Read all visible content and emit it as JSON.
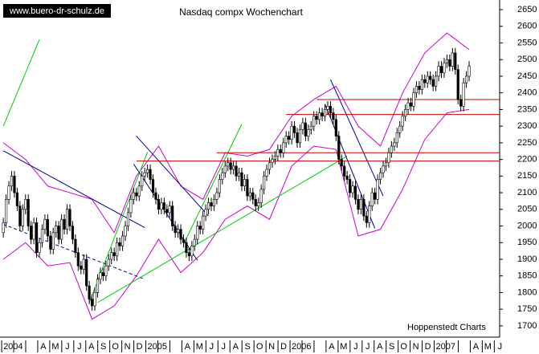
{
  "chart_data": {
    "type": "candlestick",
    "title": "Nasdaq compx Wochenchart",
    "watermark": "www.buero-dr-schulz.de",
    "source": "Hoppenstedt Charts",
    "up_color": "#ffffff",
    "down_color": "#000000",
    "ylim": [
      1666,
      2679
    ],
    "yticks": [
      1700,
      1750,
      1800,
      1850,
      1900,
      1950,
      2000,
      2050,
      2100,
      2150,
      2200,
      2250,
      2300,
      2350,
      2400,
      2450,
      2500,
      2550,
      2600,
      2650
    ],
    "xlim": [
      -1.2,
      179
    ],
    "months": [
      "2004",
      null,
      null,
      "A",
      "M",
      "J",
      "J",
      "A",
      "S",
      "O",
      "N",
      "D",
      "2005",
      null,
      null,
      "A",
      "M",
      "J",
      "J",
      "A",
      "S",
      "O",
      "N",
      "D",
      "2006",
      null,
      null,
      "A",
      "M",
      "J",
      "J",
      "A",
      "S",
      "O",
      "N",
      "D",
      "2007",
      null,
      null,
      "A",
      "M",
      "J"
    ],
    "candles": [
      [
        1980,
        2025,
        1965,
        2010
      ],
      [
        2010,
        2095,
        1995,
        2080
      ],
      [
        2080,
        2135,
        2065,
        2120
      ],
      [
        2120,
        2165,
        2105,
        2150
      ],
      [
        2150,
        2165,
        2085,
        2100
      ],
      [
        2100,
        2115,
        2045,
        2060
      ],
      [
        2060,
        2075,
        1985,
        2000
      ],
      [
        2000,
        2065,
        1985,
        2050
      ],
      [
        2050,
        2095,
        2035,
        2080
      ],
      [
        2080,
        2095,
        1985,
        2000
      ],
      [
        2000,
        2015,
        1945,
        1960
      ],
      [
        1960,
        2025,
        1945,
        2010
      ],
      [
        2010,
        2025,
        1905,
        1920
      ],
      [
        1920,
        1965,
        1905,
        1950
      ],
      [
        1950,
        2005,
        1935,
        1990
      ],
      [
        1990,
        2035,
        1975,
        2020
      ],
      [
        2020,
        2035,
        1955,
        1970
      ],
      [
        1970,
        1985,
        1915,
        1930
      ],
      [
        1930,
        1995,
        1915,
        1980
      ],
      [
        1980,
        2015,
        1965,
        2000
      ],
      [
        2000,
        2015,
        1945,
        1960
      ],
      [
        1960,
        2035,
        1945,
        2020
      ],
      [
        2020,
        2035,
        1975,
        1990
      ],
      [
        1990,
        2065,
        1975,
        2050
      ],
      [
        2050,
        2065,
        1985,
        2000
      ],
      [
        2000,
        2015,
        1945,
        1960
      ],
      [
        1960,
        1975,
        1905,
        1920
      ],
      [
        1920,
        1935,
        1865,
        1880
      ],
      [
        1880,
        1895,
        1855,
        1870
      ],
      [
        1870,
        1915,
        1855,
        1900
      ],
      [
        1900,
        1915,
        1805,
        1820
      ],
      [
        1820,
        1835,
        1765,
        1780
      ],
      [
        1780,
        1795,
        1745,
        1760
      ],
      [
        1760,
        1815,
        1745,
        1800
      ],
      [
        1800,
        1855,
        1785,
        1840
      ],
      [
        1840,
        1875,
        1825,
        1860
      ],
      [
        1860,
        1875,
        1835,
        1850
      ],
      [
        1850,
        1895,
        1835,
        1880
      ],
      [
        1880,
        1915,
        1865,
        1900
      ],
      [
        1900,
        1935,
        1885,
        1920
      ],
      [
        1920,
        1935,
        1895,
        1910
      ],
      [
        1910,
        1965,
        1895,
        1950
      ],
      [
        1950,
        1965,
        1925,
        1940
      ],
      [
        1940,
        1985,
        1925,
        1970
      ],
      [
        1970,
        2015,
        1955,
        2000
      ],
      [
        2000,
        2055,
        1985,
        2040
      ],
      [
        2040,
        2095,
        2025,
        2080
      ],
      [
        2080,
        2115,
        2065,
        2100
      ],
      [
        2100,
        2115,
        2075,
        2090
      ],
      [
        2090,
        2135,
        2075,
        2120
      ],
      [
        2120,
        2165,
        2105,
        2150
      ],
      [
        2150,
        2175,
        2135,
        2160
      ],
      [
        2160,
        2185,
        2145,
        2170
      ],
      [
        2170,
        2185,
        2125,
        2140
      ],
      [
        2140,
        2155,
        2085,
        2100
      ],
      [
        2100,
        2115,
        2065,
        2080
      ],
      [
        2080,
        2095,
        2035,
        2050
      ],
      [
        2050,
        2085,
        2035,
        2070
      ],
      [
        2070,
        2085,
        2035,
        2050
      ],
      [
        2050,
        2065,
        2025,
        2040
      ],
      [
        2040,
        2075,
        2025,
        2060
      ],
      [
        2060,
        2075,
        1985,
        2000
      ],
      [
        2000,
        2015,
        1965,
        1980
      ],
      [
        1980,
        2005,
        1965,
        1990
      ],
      [
        1990,
        2005,
        1945,
        1960
      ],
      [
        1960,
        1975,
        1935,
        1950
      ],
      [
        1950,
        1965,
        1905,
        1920
      ],
      [
        1920,
        1935,
        1895,
        1910
      ],
      [
        1910,
        1955,
        1895,
        1940
      ],
      [
        1940,
        1975,
        1925,
        1960
      ],
      [
        1960,
        2015,
        1945,
        2000
      ],
      [
        2000,
        2015,
        1975,
        1990
      ],
      [
        1990,
        2045,
        1975,
        2030
      ],
      [
        2030,
        2065,
        2015,
        2050
      ],
      [
        2050,
        2085,
        2035,
        2070
      ],
      [
        2070,
        2085,
        2045,
        2060
      ],
      [
        2060,
        2095,
        2045,
        2080
      ],
      [
        2080,
        2115,
        2065,
        2100
      ],
      [
        2100,
        2155,
        2085,
        2140
      ],
      [
        2140,
        2175,
        2125,
        2160
      ],
      [
        2160,
        2195,
        2145,
        2180
      ],
      [
        2180,
        2205,
        2165,
        2190
      ],
      [
        2190,
        2205,
        2155,
        2170
      ],
      [
        2170,
        2195,
        2155,
        2180
      ],
      [
        2180,
        2195,
        2135,
        2150
      ],
      [
        2150,
        2175,
        2135,
        2160
      ],
      [
        2160,
        2175,
        2105,
        2120
      ],
      [
        2120,
        2155,
        2105,
        2140
      ],
      [
        2140,
        2155,
        2075,
        2090
      ],
      [
        2090,
        2115,
        2075,
        2100
      ],
      [
        2100,
        2115,
        2065,
        2080
      ],
      [
        2080,
        2095,
        2045,
        2060
      ],
      [
        2060,
        2085,
        2045,
        2070
      ],
      [
        2070,
        2125,
        2055,
        2110
      ],
      [
        2110,
        2165,
        2095,
        2150
      ],
      [
        2150,
        2185,
        2135,
        2170
      ],
      [
        2170,
        2205,
        2155,
        2190
      ],
      [
        2190,
        2215,
        2175,
        2200
      ],
      [
        2200,
        2225,
        2185,
        2210
      ],
      [
        2210,
        2245,
        2195,
        2230
      ],
      [
        2230,
        2245,
        2205,
        2220
      ],
      [
        2220,
        2265,
        2205,
        2250
      ],
      [
        2250,
        2285,
        2235,
        2270
      ],
      [
        2270,
        2285,
        2245,
        2260
      ],
      [
        2260,
        2315,
        2245,
        2300
      ],
      [
        2300,
        2315,
        2265,
        2280
      ],
      [
        2280,
        2295,
        2235,
        2250
      ],
      [
        2250,
        2305,
        2235,
        2290
      ],
      [
        2290,
        2325,
        2275,
        2310
      ],
      [
        2310,
        2325,
        2255,
        2270
      ],
      [
        2270,
        2305,
        2255,
        2290
      ],
      [
        2290,
        2315,
        2275,
        2300
      ],
      [
        2300,
        2345,
        2285,
        2330
      ],
      [
        2330,
        2345,
        2305,
        2320
      ],
      [
        2320,
        2355,
        2305,
        2340
      ],
      [
        2340,
        2355,
        2315,
        2330
      ],
      [
        2330,
        2365,
        2315,
        2350
      ],
      [
        2350,
        2375,
        2335,
        2360
      ],
      [
        2360,
        2375,
        2325,
        2340
      ],
      [
        2340,
        2355,
        2305,
        2320
      ],
      [
        2320,
        2335,
        2255,
        2270
      ],
      [
        2270,
        2285,
        2185,
        2200
      ],
      [
        2200,
        2215,
        2165,
        2180
      ],
      [
        2180,
        2195,
        2135,
        2150
      ],
      [
        2150,
        2165,
        2125,
        2140
      ],
      [
        2140,
        2155,
        2085,
        2100
      ],
      [
        2100,
        2135,
        2085,
        2120
      ],
      [
        2120,
        2135,
        2065,
        2080
      ],
      [
        2080,
        2095,
        2035,
        2050
      ],
      [
        2050,
        2095,
        2035,
        2080
      ],
      [
        2080,
        2095,
        2015,
        2030
      ],
      [
        2030,
        2045,
        1995,
        2010
      ],
      [
        2010,
        2075,
        1995,
        2060
      ],
      [
        2060,
        2115,
        2045,
        2100
      ],
      [
        2100,
        2115,
        2065,
        2080
      ],
      [
        2080,
        2155,
        2065,
        2140
      ],
      [
        2140,
        2175,
        2125,
        2160
      ],
      [
        2160,
        2195,
        2145,
        2180
      ],
      [
        2180,
        2205,
        2165,
        2190
      ],
      [
        2190,
        2235,
        2175,
        2220
      ],
      [
        2220,
        2255,
        2205,
        2240
      ],
      [
        2240,
        2265,
        2225,
        2250
      ],
      [
        2250,
        2295,
        2235,
        2280
      ],
      [
        2280,
        2315,
        2265,
        2300
      ],
      [
        2300,
        2345,
        2285,
        2330
      ],
      [
        2330,
        2365,
        2315,
        2350
      ],
      [
        2350,
        2385,
        2335,
        2370
      ],
      [
        2370,
        2385,
        2345,
        2360
      ],
      [
        2360,
        2415,
        2345,
        2400
      ],
      [
        2400,
        2435,
        2385,
        2420
      ],
      [
        2420,
        2435,
        2395,
        2410
      ],
      [
        2410,
        2455,
        2395,
        2440
      ],
      [
        2440,
        2455,
        2415,
        2430
      ],
      [
        2430,
        2465,
        2415,
        2450
      ],
      [
        2450,
        2465,
        2425,
        2440
      ],
      [
        2440,
        2455,
        2405,
        2420
      ],
      [
        2420,
        2465,
        2405,
        2450
      ],
      [
        2450,
        2495,
        2435,
        2480
      ],
      [
        2480,
        2495,
        2445,
        2460
      ],
      [
        2460,
        2505,
        2445,
        2490
      ],
      [
        2490,
        2515,
        2475,
        2500
      ],
      [
        2500,
        2515,
        2465,
        2480
      ],
      [
        2480,
        2535,
        2465,
        2520
      ],
      [
        2520,
        2535,
        2455,
        2470
      ],
      [
        2470,
        2485,
        2365,
        2380
      ],
      [
        2380,
        2395,
        2345,
        2360
      ],
      [
        2360,
        2445,
        2345,
        2430
      ],
      [
        2430,
        2465,
        2415,
        2450
      ],
      [
        2450,
        2495,
        2435,
        2480
      ]
    ],
    "bands": {
      "color": "#cc00cc",
      "x": [
        0,
        8,
        16,
        24,
        32,
        40,
        48,
        56,
        64,
        72,
        80,
        88,
        96,
        104,
        112,
        120,
        128,
        136,
        144,
        152,
        160,
        168
      ],
      "upper": [
        2250,
        2200,
        2120,
        2100,
        2080,
        1980,
        2150,
        2240,
        2120,
        2080,
        2220,
        2210,
        2230,
        2330,
        2380,
        2420,
        2300,
        2240,
        2400,
        2520,
        2580,
        2530
      ],
      "lower": [
        1900,
        1950,
        1880,
        1890,
        1720,
        1760,
        1850,
        1960,
        1860,
        1920,
        2020,
        2060,
        2020,
        2180,
        2240,
        2230,
        1970,
        1990,
        2110,
        2260,
        2340,
        2350
      ]
    },
    "lines": [
      {
        "color": "#000099",
        "dashed": false,
        "x": [
          0,
          51
        ],
        "y": [
          2226,
          1995
        ]
      },
      {
        "color": "#000099",
        "dashed": true,
        "x": [
          0,
          51
        ],
        "y": [
          2005,
          1840
        ]
      },
      {
        "color": "#00cc00",
        "dashed": false,
        "x": [
          0,
          13
        ],
        "y": [
          2300,
          2560
        ]
      },
      {
        "color": "#00cc00",
        "dashed": false,
        "x": [
          31,
          52
        ],
        "y": [
          1770,
          2222
        ]
      },
      {
        "color": "#00cc00",
        "dashed": false,
        "x": [
          34,
          124
        ],
        "y": [
          1770,
          2210
        ]
      },
      {
        "color": "#00cc00",
        "dashed": false,
        "x": [
          65,
          86
        ],
        "y": [
          1945,
          2306
        ]
      },
      {
        "color": "#000099",
        "dashed": false,
        "x": [
          48,
          74
        ],
        "y": [
          2270,
          2030
        ]
      },
      {
        "color": "#000099",
        "dashed": false,
        "x": [
          47,
          70
        ],
        "y": [
          2186,
          1897
        ]
      },
      {
        "color": "#000099",
        "dashed": false,
        "x": [
          118,
          137
        ],
        "y": [
          2440,
          2090
        ]
      },
      {
        "color": "#000099",
        "dashed": false,
        "x": [
          116,
          134
        ],
        "y": [
          2366,
          1993
        ]
      },
      {
        "color": "#cc0000",
        "dashed": false,
        "x": [
          113,
          179
        ],
        "y": [
          2380,
          2380
        ]
      },
      {
        "color": "#cc0000",
        "dashed": false,
        "x": [
          102,
          179
        ],
        "y": [
          2335,
          2335
        ]
      },
      {
        "color": "#cc0000",
        "dashed": false,
        "x": [
          77,
          179
        ],
        "y": [
          2220,
          2220
        ]
      },
      {
        "color": "#cc0000",
        "dashed": false,
        "x": [
          48,
          179
        ],
        "y": [
          2195,
          2195
        ]
      }
    ]
  }
}
